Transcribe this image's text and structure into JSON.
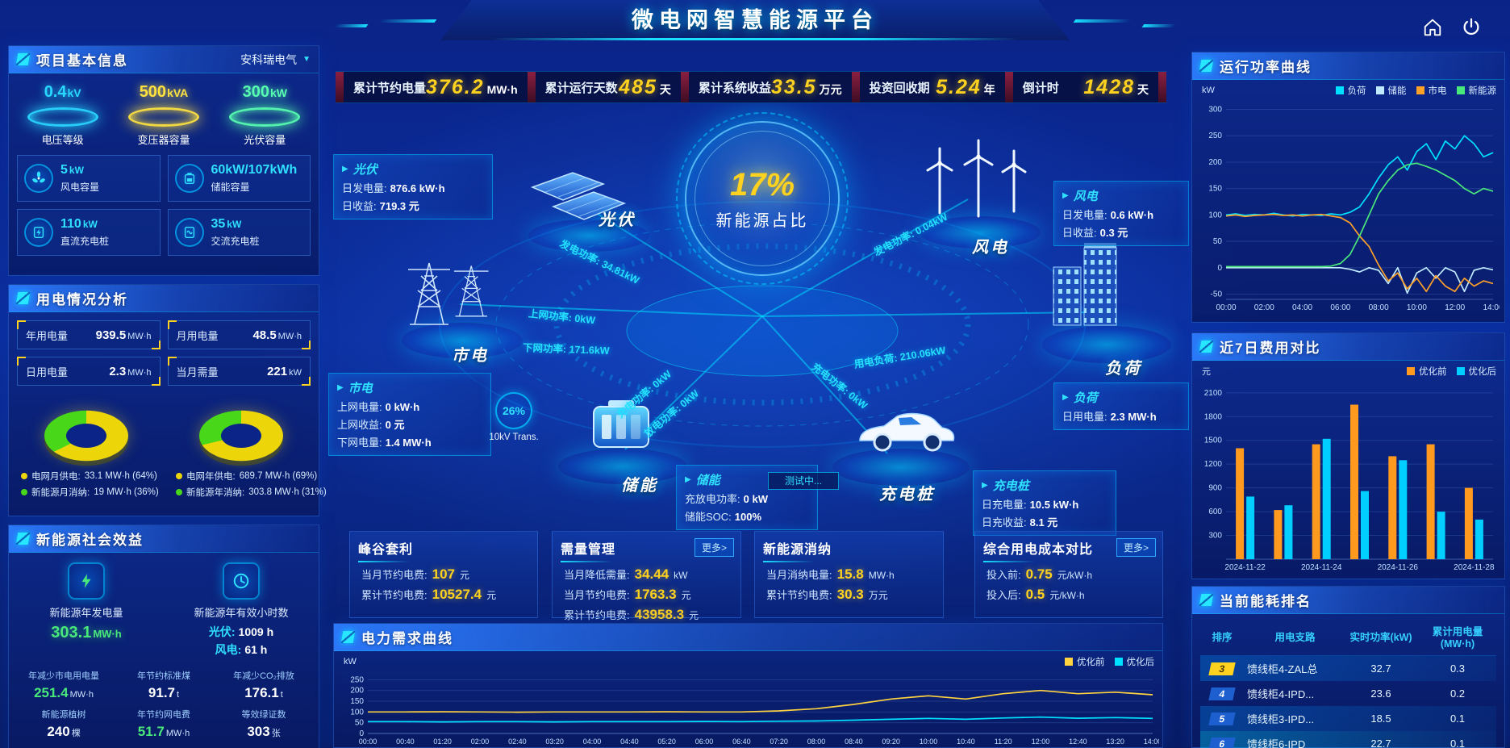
{
  "header": {
    "title": "微电网智慧能源平台"
  },
  "kpi_bar": {
    "items": [
      {
        "label": "累计节约电量",
        "value": "376.2",
        "unit": "MW·h"
      },
      {
        "label": "累计运行天数",
        "value": "485",
        "unit": "天"
      },
      {
        "label": "累计系统收益",
        "value": "33.5",
        "unit": "万元"
      },
      {
        "label": "投资回收期",
        "value": "5.24",
        "unit": "年"
      },
      {
        "label": "倒计时",
        "value": "1428",
        "unit": "天"
      }
    ]
  },
  "project_info": {
    "title": "项目基本信息",
    "company": "安科瑞电气",
    "discs": [
      {
        "value": "0.4",
        "unit": "kV",
        "label": "电压等级",
        "color": "#29d8ff"
      },
      {
        "value": "500",
        "unit": "kVA",
        "label": "变压器容量",
        "color": "#ffe23f"
      },
      {
        "value": "300",
        "unit": "kW",
        "label": "光伏容量",
        "color": "#57ffb0"
      }
    ],
    "stats": [
      {
        "value": "5",
        "unit": "kW",
        "label": "风电容量"
      },
      {
        "value": "60kW/107kWh",
        "unit": "",
        "label": "储能容量"
      },
      {
        "value": "110",
        "unit": "kW",
        "label": "直流充电桩"
      },
      {
        "value": "35",
        "unit": "kW",
        "label": "交流充电桩"
      }
    ]
  },
  "usage": {
    "title": "用电情况分析",
    "stats": [
      {
        "label": "年用电量",
        "value": "939.5",
        "unit": "MW·h"
      },
      {
        "label": "月用电量",
        "value": "48.5",
        "unit": "MW·h"
      },
      {
        "label": "日用电量",
        "value": "2.3",
        "unit": "MW·h"
      },
      {
        "label": "当月需量",
        "value": "221",
        "unit": "kW"
      }
    ],
    "donut_month": {
      "pct1": 64,
      "color1": "#ecd60a",
      "pct2": 36,
      "color2": "#49d819"
    },
    "donut_year": {
      "pct1": 69,
      "color1": "#ecd60a",
      "pct2": 31,
      "color2": "#49d819"
    },
    "legend": [
      {
        "color": "#ecd60a",
        "label": "电网月供电:",
        "value": "33.1 MW·h (64%)"
      },
      {
        "color": "#49d819",
        "label": "新能源月消纳:",
        "value": "19 MW·h (36%)"
      },
      {
        "color": "#ecd60a",
        "label": "电网年供电:",
        "value": "689.7 MW·h (69%)"
      },
      {
        "color": "#49d819",
        "label": "新能源年消纳:",
        "value": "303.8 MW·h (31%)"
      }
    ]
  },
  "benefits": {
    "title": "新能源社会效益",
    "gen": {
      "label": "新能源年发电量",
      "value": "303.1",
      "unit": "MW·h"
    },
    "hours": {
      "label": "新能源年有效小时数",
      "pv_label": "光伏:",
      "pv_value": "1009 h",
      "wind_label": "风电:",
      "wind_value": "61 h"
    },
    "small_stats": [
      {
        "label": "年减少市电用电量",
        "value": "251.4",
        "unit": "MW·h"
      },
      {
        "label": "年节约标准煤",
        "value": "91.7",
        "unit": "t"
      },
      {
        "label": "年减少CO₂排放",
        "value": "176.1",
        "unit": "t"
      },
      {
        "label": "新能源植树",
        "value": "240",
        "unit": "棵"
      },
      {
        "label": "年节约网电费",
        "value": "51.7",
        "unit": "MW·h"
      },
      {
        "label": "等效绿证数",
        "value": "303",
        "unit": "张"
      }
    ]
  },
  "center": {
    "hub": {
      "value": "17%",
      "label": "新能源占比"
    },
    "nodes": {
      "pv": {
        "name": "光伏",
        "rows": [
          {
            "label": "日发电量:",
            "value": "876.6 kW·h"
          },
          {
            "label": "日收益:",
            "value": "719.3 元"
          }
        ]
      },
      "wind": {
        "name": "风电",
        "rows": [
          {
            "label": "日发电量:",
            "value": "0.6 kW·h"
          },
          {
            "label": "日收益:",
            "value": "0.3 元"
          }
        ]
      },
      "grid": {
        "name": "市电",
        "rows": [
          {
            "label": "上网电量:",
            "value": "0 kW·h"
          },
          {
            "label": "上网收益:",
            "value": "0 元"
          },
          {
            "label": "下网电量:",
            "value": "1.4 MW·h"
          }
        ]
      },
      "load": {
        "name": "负荷",
        "rows": [
          {
            "label": "日用电量:",
            "value": "2.3 MW·h"
          }
        ]
      },
      "storage": {
        "name": "储能",
        "rows": [
          {
            "label": "充放电功率:",
            "value": "0 kW"
          },
          {
            "label": "储能SOC:",
            "value": "100%"
          }
        ]
      },
      "charger": {
        "name": "充电桩",
        "rows": [
          {
            "label": "日充电量:",
            "value": "10.5 kW·h"
          },
          {
            "label": "日充收益:",
            "value": "8.1 元"
          }
        ]
      }
    },
    "node_labels": {
      "pv": "光伏",
      "wind": "风电",
      "grid": "市电",
      "load": "负荷",
      "storage": "储能",
      "charger": "充电桩"
    },
    "flows": {
      "pv_power": "发电功率: 34.81kW",
      "up_power": "上网功率: 0kW",
      "down_power": "下网功率: 171.6kW",
      "wind_power": "发电功率: 0.04kW",
      "load_power": "用电负荷: 210.06kW",
      "charge_power": "充电功率: 0kW",
      "discharge_power": "放电功率: 0kW",
      "charger_power": "充电功率: 0kW"
    },
    "transformer": {
      "pct": "26%",
      "label": "10kV Trans."
    },
    "testing_badge": "测试中..."
  },
  "bottom_panels": [
    {
      "title": "峰谷套利",
      "rows": [
        {
          "label": "当月节约电费:",
          "value": "107",
          "unit": "元"
        },
        {
          "label": "累计节约电费:",
          "value": "10527.4",
          "unit": "元"
        }
      ]
    },
    {
      "title": "需量管理",
      "more": "更多>",
      "rows": [
        {
          "label": "当月降低需量:",
          "value": "34.44",
          "unit": "kW"
        },
        {
          "label": "当月节约电费:",
          "value": "1763.3",
          "unit": "元"
        },
        {
          "label": "累计节约电费:",
          "value": "43958.3",
          "unit": "元"
        }
      ]
    },
    {
      "title": "新能源消纳",
      "rows": [
        {
          "label": "当月消纳电量:",
          "value": "15.8",
          "unit": "MW·h"
        },
        {
          "label": "累计节约电费:",
          "value": "30.3",
          "unit": "万元"
        }
      ]
    },
    {
      "title": "综合用电成本对比",
      "more": "更多>",
      "rows": [
        {
          "label": "投入前:",
          "value": "0.75",
          "unit": "元/kW·h"
        },
        {
          "label": "投入后:",
          "value": "0.5",
          "unit": "元/kW·h"
        }
      ]
    }
  ],
  "ranking": {
    "title": "当前能耗排名",
    "columns": [
      "排序",
      "用电支路",
      "实时功率(kW)",
      "累计用电量(MW·h)"
    ],
    "rows": [
      {
        "rank": "3",
        "branch": "馈线柜4-ZAL总",
        "power": "32.7",
        "energy": "0.3"
      },
      {
        "rank": "4",
        "branch": "馈线柜4-IPD...",
        "power": "23.6",
        "energy": "0.2"
      },
      {
        "rank": "5",
        "branch": "馈线柜3-IPD...",
        "power": "18.5",
        "energy": "0.1"
      },
      {
        "rank": "6",
        "branch": "馈线柜6-IPD",
        "power": "22.7",
        "energy": "0.1"
      }
    ]
  },
  "chart_data": {
    "power": {
      "type": "line",
      "title": "运行功率曲线",
      "ylabel": "kW",
      "yrange": [
        -60,
        310
      ],
      "yticks": [
        300,
        250,
        200,
        150,
        100,
        50,
        0,
        -50
      ],
      "xlabels": [
        "00:00",
        "02:00",
        "04:00",
        "06:00",
        "08:00",
        "10:00",
        "12:00",
        "14:00"
      ],
      "xfont": 10,
      "series": [
        {
          "name": "负荷",
          "color": "#00e0ff",
          "values": [
            100,
            102,
            99,
            101,
            100,
            103,
            100,
            98,
            101,
            100,
            99,
            102,
            100,
            105,
            115,
            140,
            170,
            195,
            210,
            185,
            220,
            235,
            205,
            240,
            225,
            250,
            235,
            210,
            218
          ]
        },
        {
          "name": "储能",
          "color": "#bfeaff",
          "values": [
            0,
            0,
            0,
            0,
            0,
            0,
            0,
            0,
            0,
            0,
            0,
            0,
            0,
            -3,
            -8,
            0,
            -5,
            -30,
            0,
            -48,
            -10,
            0,
            -20,
            0,
            -8,
            -45,
            -5,
            0,
            -4
          ]
        },
        {
          "name": "市电",
          "color": "#ffa028",
          "values": [
            98,
            100,
            97,
            99,
            100,
            101,
            99,
            100,
            98,
            100,
            101,
            98,
            95,
            85,
            60,
            40,
            5,
            -25,
            -10,
            -40,
            -20,
            -45,
            -15,
            -35,
            -45,
            -20,
            -35,
            -25,
            -30
          ]
        },
        {
          "name": "新能源",
          "color": "#49e87a",
          "values": [
            2,
            2,
            2,
            2,
            2,
            2,
            2,
            2,
            2,
            2,
            2,
            3,
            8,
            25,
            60,
            100,
            140,
            165,
            185,
            195,
            198,
            192,
            185,
            175,
            165,
            150,
            140,
            150,
            145
          ]
        }
      ]
    },
    "cost": {
      "type": "bar",
      "title": "近7日费用对比",
      "ylabel": "元",
      "yrange": [
        0,
        2200
      ],
      "yticks": [
        2100,
        1800,
        1500,
        1200,
        900,
        600,
        300
      ],
      "xlabels": [
        "2024-11-22",
        "",
        "2024-11-24",
        "",
        "2024-11-26",
        "",
        "2024-11-28"
      ],
      "xfont": 10,
      "barw": 10,
      "categories": [
        "2024-11-22",
        "2024-11-23",
        "2024-11-24",
        "2024-11-25",
        "2024-11-26",
        "2024-11-27",
        "2024-11-28"
      ],
      "series": [
        {
          "name": "优化前",
          "color": "#ff9a1e",
          "values": [
            1400,
            620,
            1450,
            1950,
            1300,
            1450,
            900
          ]
        },
        {
          "name": "优化后",
          "color": "#00cfff",
          "values": [
            790,
            680,
            1520,
            860,
            1250,
            600,
            500
          ]
        }
      ]
    },
    "demand": {
      "type": "line",
      "title": "电力需求曲线",
      "ylabel": "kW",
      "yrange": [
        0,
        270
      ],
      "yticks": [
        250,
        200,
        150,
        100,
        50,
        0
      ],
      "xlabels": [
        "00:00",
        "00:40",
        "01:20",
        "02:00",
        "02:40",
        "03:20",
        "04:00",
        "04:40",
        "05:20",
        "06:00",
        "06:40",
        "07:20",
        "08:00",
        "08:40",
        "09:20",
        "10:00",
        "10:40",
        "11:20",
        "12:00",
        "12:40",
        "13:20",
        "14:00"
      ],
      "xfont": 9,
      "series": [
        {
          "name": "优化前",
          "color": "#ffd23f",
          "values": [
            100,
            100,
            101,
            100,
            99,
            100,
            100,
            100,
            101,
            100,
            100,
            105,
            115,
            135,
            160,
            175,
            160,
            185,
            200,
            185,
            192,
            180
          ]
        },
        {
          "name": "优化后",
          "color": "#00e0ff",
          "values": [
            55,
            55,
            54,
            55,
            55,
            54,
            55,
            55,
            55,
            56,
            55,
            57,
            58,
            62,
            66,
            70,
            66,
            72,
            76,
            71,
            74,
            70
          ]
        }
      ]
    }
  }
}
